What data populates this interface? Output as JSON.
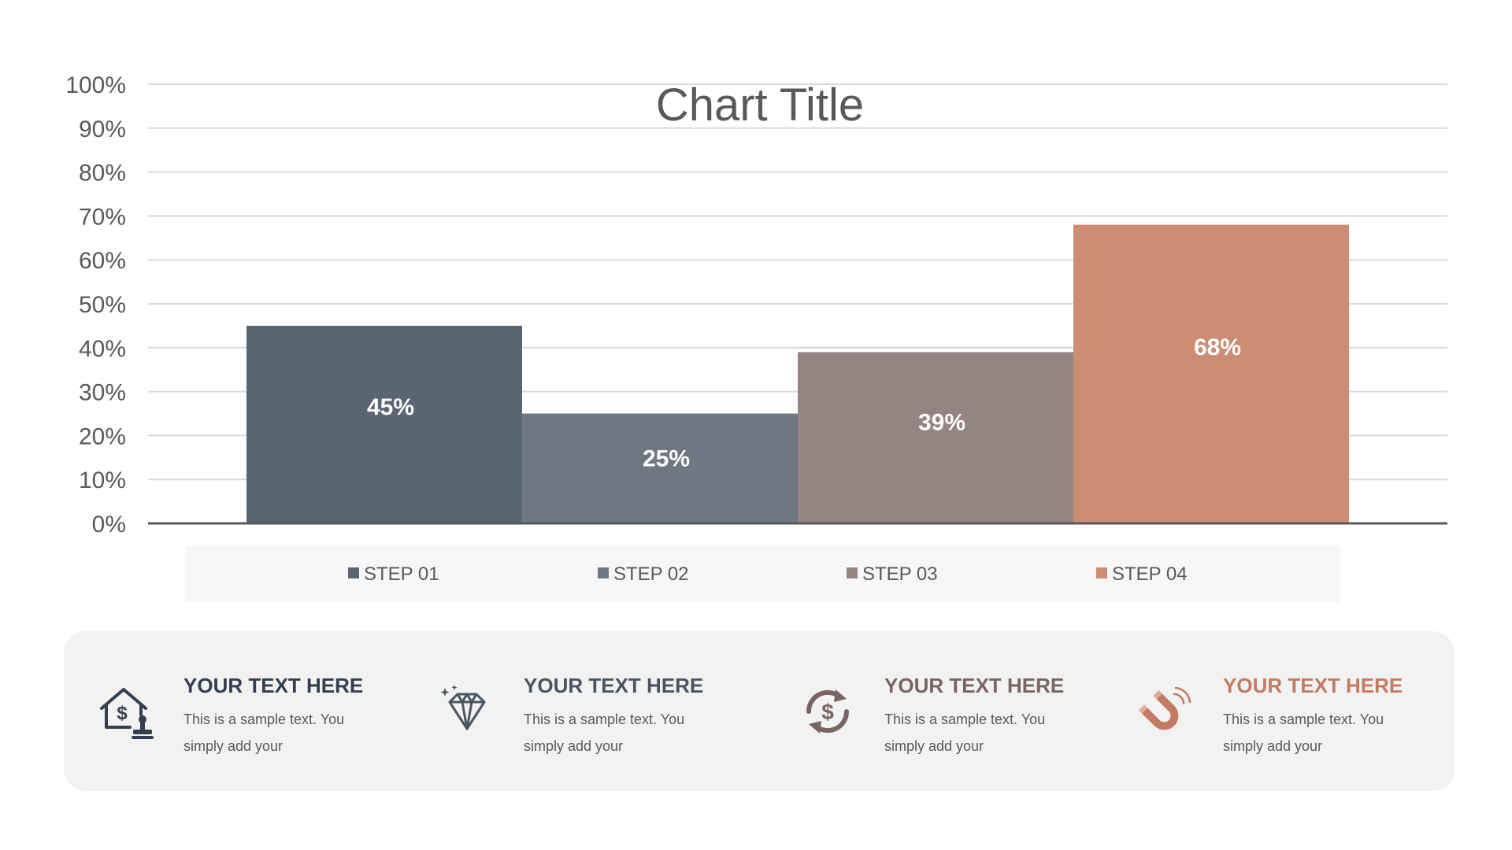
{
  "chart_data": {
    "type": "bar",
    "title": "Chart Title",
    "categories": [
      "STEP 01",
      "STEP 02",
      "STEP 03",
      "STEP 04"
    ],
    "values": [
      45,
      25,
      39,
      68
    ],
    "data_labels": [
      "45%",
      "25%",
      "39%",
      "68%"
    ],
    "colors": [
      "#5a6573",
      "#6e7782",
      "#968483",
      "#cd8d75"
    ],
    "ylim": [
      0,
      100
    ],
    "yticks": [
      "0%",
      "10%",
      "20%",
      "30%",
      "40%",
      "50%",
      "60%",
      "70%",
      "80%",
      "90%",
      "100%"
    ],
    "grid": true,
    "legend": "bottom",
    "xlabel": "",
    "ylabel": ""
  },
  "cards": [
    {
      "title": "YOUR TEXT HERE",
      "text": "This is a sample text. You simply add your",
      "icon": "house-dollar-stamp-icon",
      "color": "#333f50"
    },
    {
      "title": "YOUR TEXT HERE",
      "text": "This is a sample text. You simply add your",
      "icon": "diamond-icon",
      "color": "#4a5562"
    },
    {
      "title": "YOUR TEXT HERE",
      "text": "This is a sample text. You simply add your",
      "icon": "dollar-exchange-icon",
      "color": "#7a6462"
    },
    {
      "title": "YOUR TEXT HERE",
      "text": "This is a sample text. You simply add your",
      "icon": "magnet-icon",
      "color": "#c57b61"
    }
  ]
}
